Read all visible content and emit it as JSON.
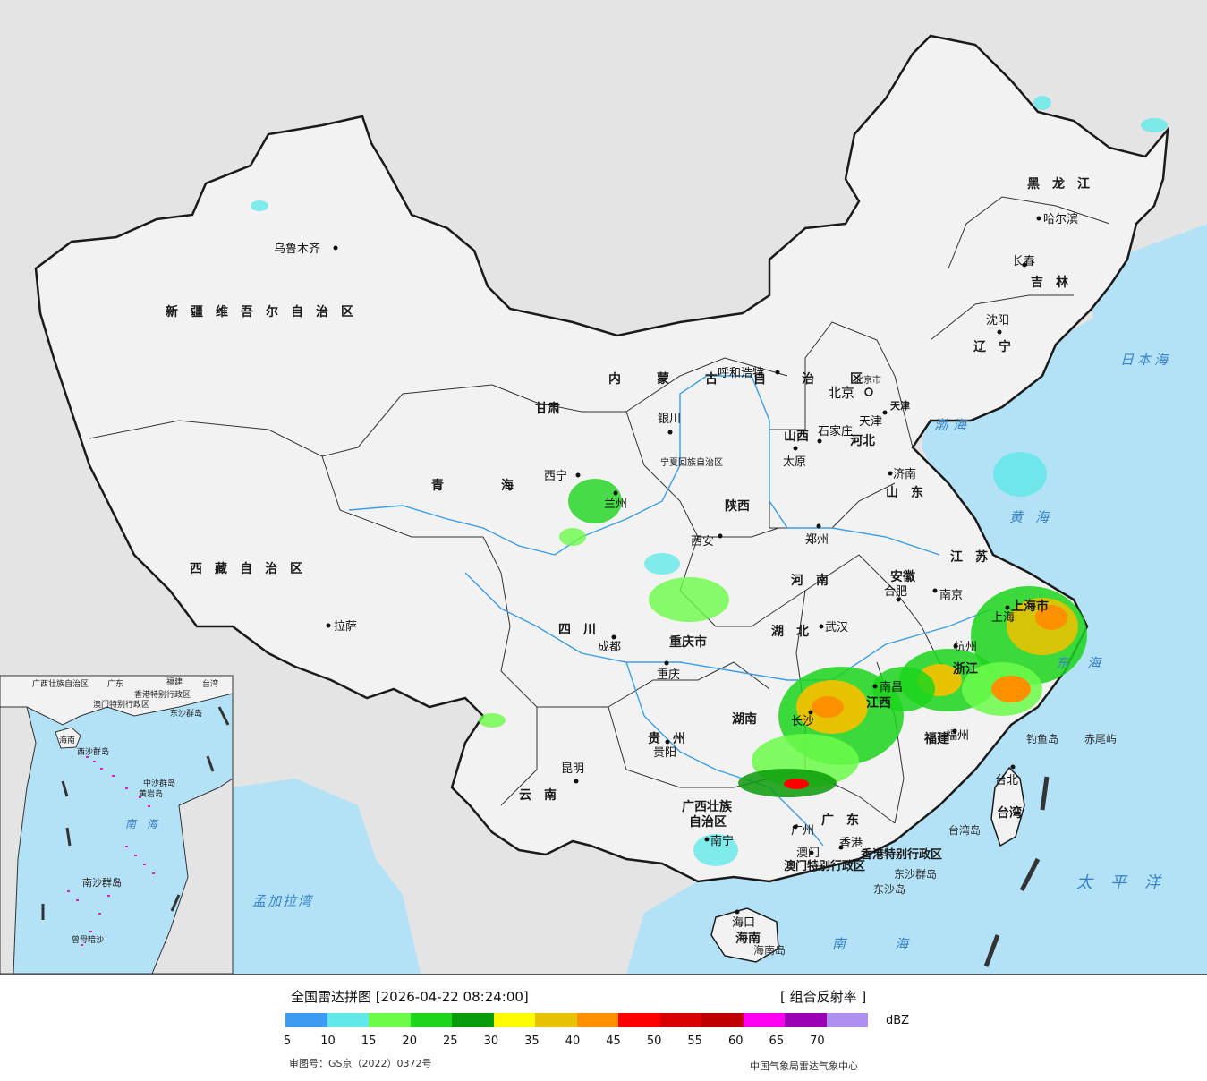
{
  "map": {
    "provinces": [
      {
        "id": "xinjiang",
        "name": "新疆维吾尔自治区"
      },
      {
        "id": "xizang",
        "name": "西藏自治区"
      },
      {
        "id": "qinghai",
        "name": "青海"
      },
      {
        "id": "gansu",
        "name": "甘肃"
      },
      {
        "id": "neimenggu",
        "name": "内蒙古自治区"
      },
      {
        "id": "heilongjiang",
        "name": "黑龙江"
      },
      {
        "id": "jilin",
        "name": "吉林"
      },
      {
        "id": "liaoning",
        "name": "辽宁"
      },
      {
        "id": "hebei",
        "name": "河北"
      },
      {
        "id": "shanxi",
        "name": "山西"
      },
      {
        "id": "shaanxi",
        "name": "陕西"
      },
      {
        "id": "ningxia",
        "name": "宁夏回族自治区"
      },
      {
        "id": "shandong",
        "name": "山东"
      },
      {
        "id": "henan",
        "name": "河南"
      },
      {
        "id": "jiangsu",
        "name": "江苏"
      },
      {
        "id": "anhui",
        "name": "安徽"
      },
      {
        "id": "hubei",
        "name": "湖北"
      },
      {
        "id": "sichuan",
        "name": "四川"
      },
      {
        "id": "chongqing",
        "name": "重庆市"
      },
      {
        "id": "shanghai",
        "name": "上海市"
      },
      {
        "id": "zhejiang",
        "name": "浙江"
      },
      {
        "id": "jiangxi",
        "name": "江西"
      },
      {
        "id": "hunan",
        "name": "湖南"
      },
      {
        "id": "guizhou",
        "name": "贵州"
      },
      {
        "id": "yunnan",
        "name": "云南"
      },
      {
        "id": "guangxi1",
        "name": "广西壮族"
      },
      {
        "id": "guangxi2",
        "name": "自治区"
      },
      {
        "id": "guangdong",
        "name": "广东"
      },
      {
        "id": "fujian",
        "name": "福建"
      },
      {
        "id": "taiwan",
        "name": "台湾"
      },
      {
        "id": "hainan",
        "name": "海南"
      },
      {
        "id": "beijing",
        "name": "北京市"
      },
      {
        "id": "tianjin",
        "name": "天津"
      },
      {
        "id": "hk",
        "name": "香港特别行政区"
      },
      {
        "id": "macau",
        "name": "澳门特别行政区"
      }
    ],
    "cities": [
      {
        "id": "urumqi",
        "name": "乌鲁木齐"
      },
      {
        "id": "lhasa",
        "name": "拉萨"
      },
      {
        "id": "xining",
        "name": "西宁"
      },
      {
        "id": "lanzhou",
        "name": "兰州"
      },
      {
        "id": "yinchuan",
        "name": "银川"
      },
      {
        "id": "huhehaote",
        "name": "呼和浩特"
      },
      {
        "id": "beijing",
        "name": "北京"
      },
      {
        "id": "tianjin",
        "name": "天津"
      },
      {
        "id": "shijiazhuang",
        "name": "石家庄"
      },
      {
        "id": "taiyuan",
        "name": "太原"
      },
      {
        "id": "jinan",
        "name": "济南"
      },
      {
        "id": "zhengzhou",
        "name": "郑州"
      },
      {
        "id": "xian",
        "name": "西安"
      },
      {
        "id": "chengdu",
        "name": "成都"
      },
      {
        "id": "chongqing",
        "name": "重庆"
      },
      {
        "id": "wuhan",
        "name": "武汉"
      },
      {
        "id": "hefei",
        "name": "合肥"
      },
      {
        "id": "nanjing",
        "name": "南京"
      },
      {
        "id": "shanghai",
        "name": "上海"
      },
      {
        "id": "hangzhou",
        "name": "杭州"
      },
      {
        "id": "nanchang",
        "name": "南昌"
      },
      {
        "id": "changsha",
        "name": "长沙"
      },
      {
        "id": "guiyang",
        "name": "贵阳"
      },
      {
        "id": "kunming",
        "name": "昆明"
      },
      {
        "id": "nanning",
        "name": "南宁"
      },
      {
        "id": "guangzhou",
        "name": "广州"
      },
      {
        "id": "xianggang",
        "name": "香港"
      },
      {
        "id": "aomen",
        "name": "澳门"
      },
      {
        "id": "fuzhou",
        "name": "福州"
      },
      {
        "id": "taibei",
        "name": "台北"
      },
      {
        "id": "haikou",
        "name": "海口"
      },
      {
        "id": "shenyang",
        "name": "沈阳"
      },
      {
        "id": "changchun",
        "name": "长春"
      },
      {
        "id": "haerbin",
        "name": "哈尔滨"
      }
    ],
    "seas": [
      {
        "id": "bohai",
        "name": "渤海"
      },
      {
        "id": "huanghai",
        "name": "黄海"
      },
      {
        "id": "donghai",
        "name": "东海"
      },
      {
        "id": "nanhai",
        "name": "南海"
      },
      {
        "id": "riben",
        "name": "日本海"
      },
      {
        "id": "taipingyang",
        "name": "太平洋"
      },
      {
        "id": "mengjiala",
        "name": "孟加拉湾"
      }
    ],
    "islands": [
      {
        "id": "diaoyu",
        "name": "钓鱼岛"
      },
      {
        "id": "chiwei",
        "name": "赤尾屿"
      },
      {
        "id": "dongsha",
        "name": "东沙群岛"
      },
      {
        "id": "dongshadao",
        "name": "东沙岛"
      },
      {
        "id": "taiwandao",
        "name": "台湾岛"
      },
      {
        "id": "hainandao",
        "name": "海南岛"
      }
    ],
    "inset": {
      "labels": [
        {
          "id": "gx",
          "name": "广西壮族自治区"
        },
        {
          "id": "gd",
          "name": "广东"
        },
        {
          "id": "fj",
          "name": "福建"
        },
        {
          "id": "tw",
          "name": "台湾"
        },
        {
          "id": "hk",
          "name": "香港特别行政区"
        },
        {
          "id": "mo",
          "name": "澳门特别行政区"
        },
        {
          "id": "dsqd",
          "name": "东沙群岛"
        },
        {
          "id": "hn",
          "name": "海南"
        },
        {
          "id": "xsqd",
          "name": "西沙群岛"
        },
        {
          "id": "zsqd",
          "name": "中沙群岛"
        },
        {
          "id": "hyd",
          "name": "黄岩岛"
        },
        {
          "id": "nh",
          "name": "南海"
        },
        {
          "id": "nsqd",
          "name": "南沙群岛"
        },
        {
          "id": "zmad",
          "name": "曾母暗沙"
        }
      ]
    },
    "colors": {
      "land": "#f2f2f2",
      "foreign": "#e4e4e4",
      "sea": "#b3e2f7",
      "river": "#3d9ee0",
      "border": "#1a1a1a"
    }
  },
  "footer": {
    "title": "全国雷达拼图 [2026-04-22 08:24:00]",
    "product": "[ 组合反射率 ]",
    "unit": "dBZ",
    "review_no": "审图号：GS京（2022）0372号",
    "credit": "中国气象局雷达气象中心"
  },
  "legend": {
    "colors": [
      "#3e9bf2",
      "#63e8e8",
      "#6cfb49",
      "#1cd51c",
      "#0a9b0a",
      "#fffb00",
      "#e7c200",
      "#ff9100",
      "#ff0000",
      "#d90000",
      "#c00000",
      "#ff00f0",
      "#9b00b4",
      "#ad90f0"
    ],
    "ticks": [
      "5",
      "10",
      "15",
      "20",
      "25",
      "30",
      "35",
      "40",
      "45",
      "50",
      "55",
      "60",
      "65",
      "70"
    ]
  }
}
